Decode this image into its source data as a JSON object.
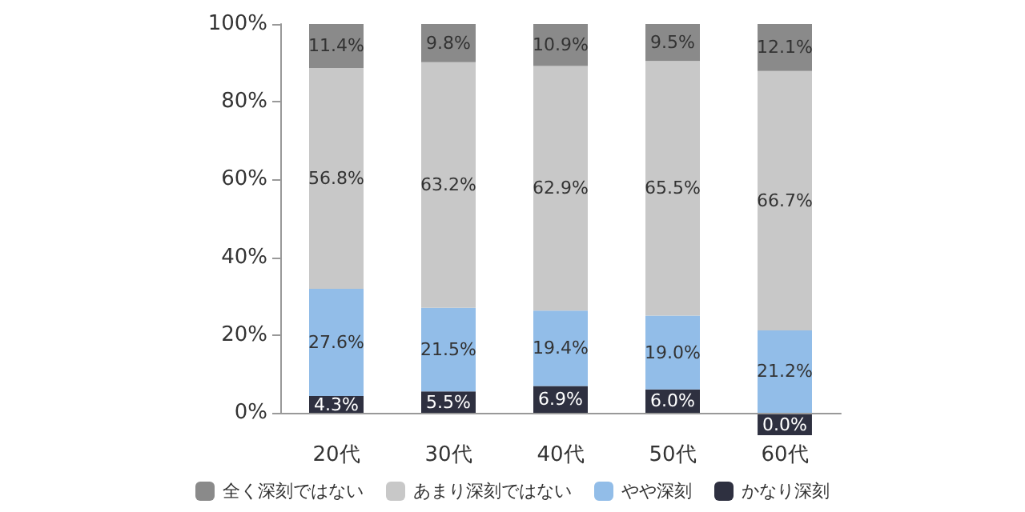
{
  "chart_data": {
    "type": "bar",
    "stacked": true,
    "categories": [
      "20代",
      "30代",
      "40代",
      "50代",
      "60代"
    ],
    "series": [
      {
        "name": "かなり深刻",
        "color": "#2e3040",
        "values": [
          4.3,
          5.5,
          6.9,
          6.0,
          0.0
        ],
        "value_labels": [
          "4.3%",
          "5.5%",
          "6.9%",
          "6.0%",
          "0.0%"
        ]
      },
      {
        "name": "やや深刻",
        "color": "#92bde8",
        "values": [
          27.6,
          21.5,
          19.4,
          19.0,
          21.2
        ],
        "value_labels": [
          "27.6%",
          "21.5%",
          "19.4%",
          "19.0%",
          "21.2%"
        ]
      },
      {
        "name": "あまり深刻ではない",
        "color": "#c8c8c8",
        "values": [
          56.8,
          63.2,
          62.9,
          65.5,
          66.7
        ],
        "value_labels": [
          "56.8%",
          "63.2%",
          "62.9%",
          "65.5%",
          "66.7%"
        ]
      },
      {
        "name": "全く深刻ではない",
        "color": "#8a8a8a",
        "values": [
          11.4,
          9.8,
          10.9,
          9.5,
          12.1
        ],
        "value_labels": [
          "11.4%",
          "9.8%",
          "10.9%",
          "9.5%",
          "12.1%"
        ]
      }
    ],
    "ylim": [
      0,
      100
    ],
    "yticks": [
      {
        "value": 0,
        "label": "0%"
      },
      {
        "value": 20,
        "label": "20%"
      },
      {
        "value": 40,
        "label": "40%"
      },
      {
        "value": 60,
        "label": "60%"
      },
      {
        "value": 80,
        "label": "80%"
      },
      {
        "value": 100,
        "label": "100%"
      }
    ],
    "grid": false,
    "legend": "bottom"
  }
}
